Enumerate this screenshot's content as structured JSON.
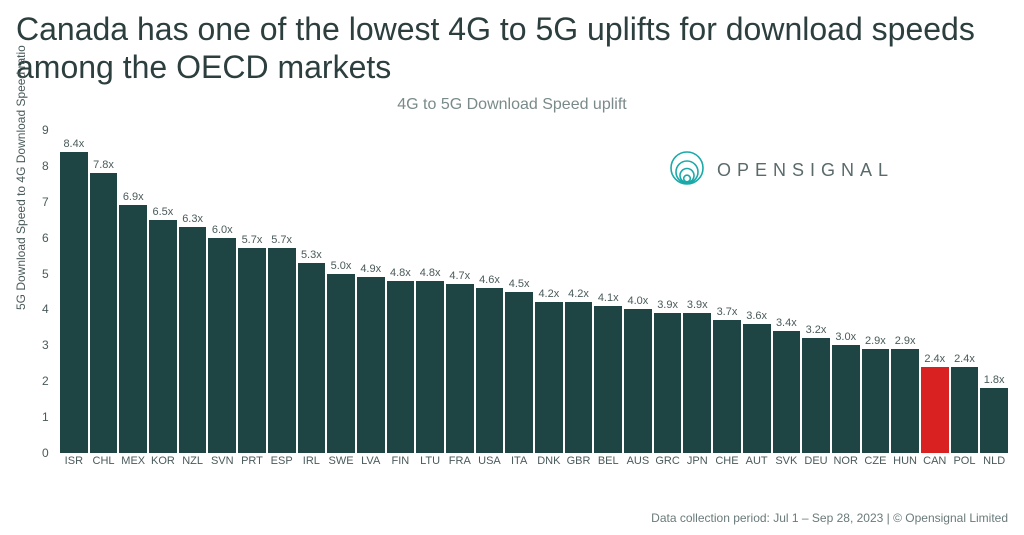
{
  "title": "Canada has one of the lowest 4G to 5G uplifts for download speeds among the OECD markets",
  "subtitle": "4G to 5G Download Speed uplift",
  "ylabel": "5G Download Speed to 4G Download Speed ratio",
  "footer": "Data collection period: Jul 1 – Sep 28, 2023 | © Opensignal Limited",
  "logo": {
    "text": "OPENSIGNAL",
    "color": "#1aa9a9"
  },
  "chart": {
    "type": "bar",
    "ylim": [
      0,
      9
    ],
    "ytick_step": 1,
    "background_color": "#ffffff",
    "bar_color": "#1f4444",
    "highlight_color": "#d92121",
    "text_color": "#4a5a5a",
    "value_suffix": "x",
    "value_fontsize": 11,
    "axis_fontsize": 12,
    "bars": [
      {
        "code": "ISR",
        "value": 8.4
      },
      {
        "code": "CHL",
        "value": 7.8
      },
      {
        "code": "MEX",
        "value": 6.9
      },
      {
        "code": "KOR",
        "value": 6.5
      },
      {
        "code": "NZL",
        "value": 6.3
      },
      {
        "code": "SVN",
        "value": 6.0
      },
      {
        "code": "PRT",
        "value": 5.7
      },
      {
        "code": "ESP",
        "value": 5.7
      },
      {
        "code": "IRL",
        "value": 5.3
      },
      {
        "code": "SWE",
        "value": 5.0
      },
      {
        "code": "LVA",
        "value": 4.9
      },
      {
        "code": "FIN",
        "value": 4.8
      },
      {
        "code": "LTU",
        "value": 4.8
      },
      {
        "code": "FRA",
        "value": 4.7
      },
      {
        "code": "USA",
        "value": 4.6
      },
      {
        "code": "ITA",
        "value": 4.5
      },
      {
        "code": "DNK",
        "value": 4.2
      },
      {
        "code": "GBR",
        "value": 4.2
      },
      {
        "code": "BEL",
        "value": 4.1
      },
      {
        "code": "AUS",
        "value": 4.0
      },
      {
        "code": "GRC",
        "value": 3.9
      },
      {
        "code": "JPN",
        "value": 3.9
      },
      {
        "code": "CHE",
        "value": 3.7
      },
      {
        "code": "AUT",
        "value": 3.6
      },
      {
        "code": "SVK",
        "value": 3.4
      },
      {
        "code": "DEU",
        "value": 3.2
      },
      {
        "code": "NOR",
        "value": 3.0
      },
      {
        "code": "CZE",
        "value": 2.9
      },
      {
        "code": "HUN",
        "value": 2.9
      },
      {
        "code": "CAN",
        "value": 2.4,
        "highlight": true
      },
      {
        "code": "POL",
        "value": 2.4
      },
      {
        "code": "NLD",
        "value": 1.8
      }
    ]
  }
}
